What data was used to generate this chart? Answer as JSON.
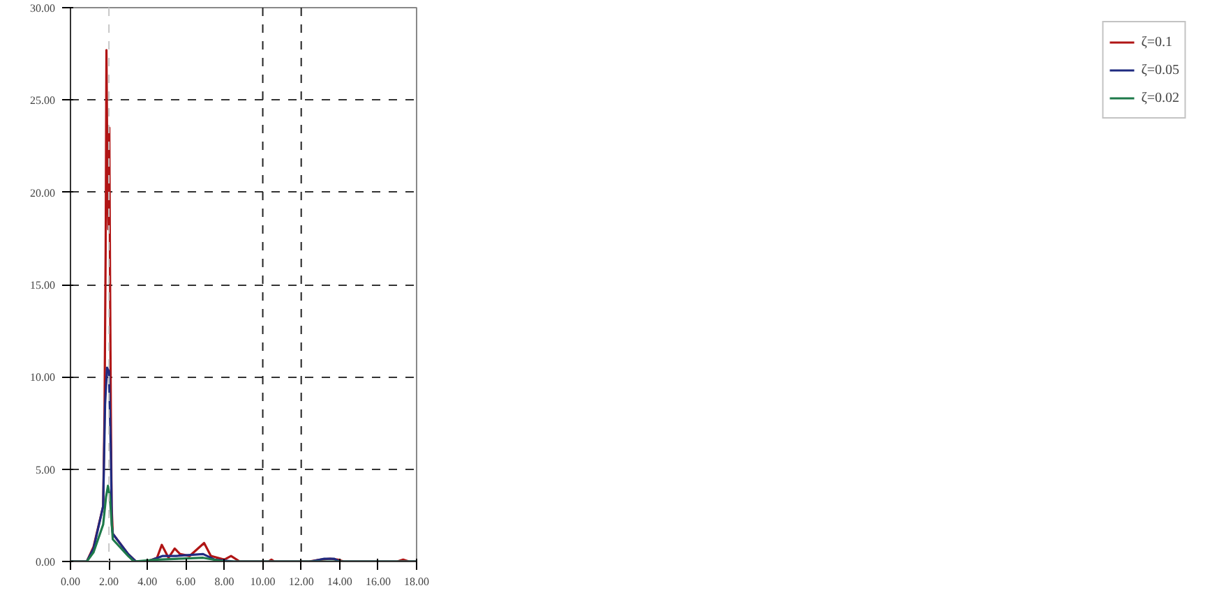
{
  "chart_data": {
    "type": "line",
    "xlim": [
      0,
      18
    ],
    "ylim": [
      0,
      30
    ],
    "xticks": [
      {
        "value": 0,
        "label": "0.00"
      },
      {
        "value": 2,
        "label": "2.00"
      },
      {
        "value": 4,
        "label": "4.00"
      },
      {
        "value": 6,
        "label": "6.00"
      },
      {
        "value": 8,
        "label": "8.00"
      },
      {
        "value": 10,
        "label": "10.00"
      },
      {
        "value": 12,
        "label": "12.00"
      },
      {
        "value": 14,
        "label": "14.00"
      },
      {
        "value": 16,
        "label": "16.00"
      },
      {
        "value": 18,
        "label": "18.00"
      }
    ],
    "yticks": [
      {
        "value": 0,
        "label": "0.00"
      },
      {
        "value": 5,
        "label": "5.00"
      },
      {
        "value": 10,
        "label": "10.00"
      },
      {
        "value": 15,
        "label": "15.00"
      },
      {
        "value": 20,
        "label": "20.00"
      },
      {
        "value": 25,
        "label": "25.00"
      },
      {
        "value": 30,
        "label": "30.00"
      }
    ],
    "grid": "y",
    "legend": "right",
    "line_style": "solid",
    "ref_lines": [
      {
        "axis": "x",
        "value": 2,
        "color": "#c8c8c8",
        "line_style": "dashed"
      },
      {
        "axis": "x",
        "value": 10,
        "color": "#222222",
        "line_style": "dashed"
      },
      {
        "axis": "x",
        "value": 12,
        "color": "#222222",
        "line_style": "dashed"
      }
    ],
    "series": [
      {
        "name": "ζ=0.1",
        "color": "#b01515",
        "x": [
          0,
          0.85,
          1.2,
          1.7,
          1.77,
          1.83,
          1.87,
          1.93,
          1.97,
          2.02,
          2.06,
          2.1,
          2.14,
          2.2,
          3.0,
          3.4,
          4.0,
          4.5,
          4.75,
          5.1,
          5.42,
          5.7,
          6.2,
          6.95,
          7.3,
          8.0,
          8.35,
          8.8,
          9.5,
          10.3,
          10.45,
          10.6,
          12.4,
          13.0,
          13.5,
          13.9,
          14.2,
          17.0,
          17.3,
          17.6,
          18
        ],
        "values": [
          0,
          0,
          0.8,
          3,
          8,
          17,
          27.7,
          20,
          18,
          23.5,
          15,
          8,
          3,
          1.5,
          0.4,
          0,
          0,
          0.2,
          0.9,
          0.2,
          0.7,
          0.4,
          0.3,
          1.0,
          0.3,
          0.1,
          0.3,
          0,
          0,
          0,
          0.1,
          0,
          0,
          0.1,
          0.15,
          0.1,
          0,
          0,
          0.1,
          0,
          0
        ]
      },
      {
        "name": "ζ=0.05",
        "color": "#1f2a80",
        "x": [
          0,
          0.85,
          1.2,
          1.7,
          1.8,
          1.9,
          2.0,
          2.1,
          2.15,
          2.2,
          3.0,
          3.4,
          4.0,
          4.8,
          5.5,
          6.9,
          7.5,
          8.5,
          12.5,
          13.2,
          13.7,
          14.0,
          18
        ],
        "values": [
          0,
          0,
          0.7,
          3,
          8.5,
          10.5,
          10.3,
          6,
          2,
          1.5,
          0.4,
          0,
          0,
          0.3,
          0.3,
          0.4,
          0.1,
          0,
          0,
          0.15,
          0.15,
          0,
          0
        ]
      },
      {
        "name": "ζ=0.02",
        "color": "#1e7a4a",
        "x": [
          0,
          0.85,
          1.2,
          1.7,
          1.85,
          1.95,
          2.05,
          2.2,
          3.0,
          3.3,
          4.5,
          6.9,
          8.0,
          18
        ],
        "values": [
          0,
          0,
          0.5,
          2,
          3.5,
          4.1,
          3.5,
          1.2,
          0.3,
          0,
          0.1,
          0.2,
          0,
          0
        ]
      }
    ]
  }
}
